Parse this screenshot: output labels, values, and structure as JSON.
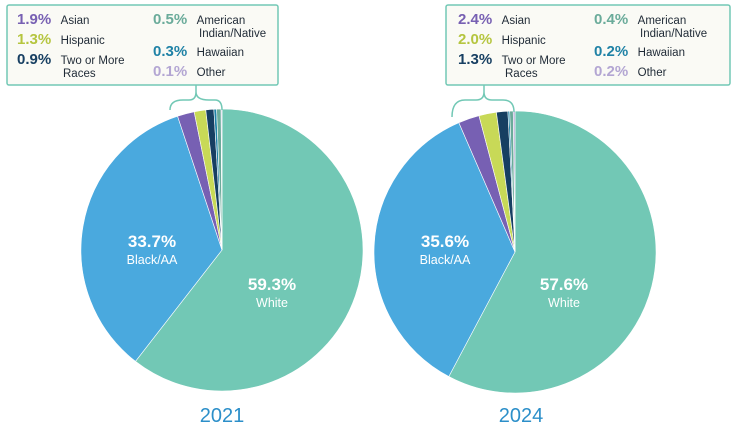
{
  "chart_data": [
    {
      "type": "pie",
      "title": "2021",
      "slices": [
        {
          "label": "White",
          "value": 59.3,
          "display": "59.3%",
          "color": "#72c8b5"
        },
        {
          "label": "Black/AA",
          "value": 33.7,
          "display": "33.7%",
          "color": "#4aa9de"
        },
        {
          "label": "Asian",
          "value": 1.9,
          "display": "1.9%",
          "color": "#7760b3"
        },
        {
          "label": "Hispanic",
          "value": 1.3,
          "display": "1.3%",
          "color": "#c8d957"
        },
        {
          "label": "Two or More Races",
          "value": 0.9,
          "display": "0.9%",
          "color": "#173f62"
        },
        {
          "label": "Hawaiian",
          "value": 0.3,
          "display": "0.3%",
          "color": "#1f82a6"
        },
        {
          "label": "American Indian/Native",
          "value": 0.5,
          "display": "0.5%",
          "color": "#6aab9a"
        },
        {
          "label": "Other",
          "value": 0.1,
          "display": "0.1%",
          "color": "#b3a6d3"
        }
      ]
    },
    {
      "type": "pie",
      "title": "2024",
      "slices": [
        {
          "label": "White",
          "value": 57.6,
          "display": "57.6%",
          "color": "#72c8b5"
        },
        {
          "label": "Black/AA",
          "value": 35.6,
          "display": "35.6%",
          "color": "#4aa9de"
        },
        {
          "label": "Asian",
          "value": 2.4,
          "display": "2.4%",
          "color": "#7760b3"
        },
        {
          "label": "Hispanic",
          "value": 2.0,
          "display": "2.0%",
          "color": "#c8d957"
        },
        {
          "label": "Two or More Races",
          "value": 1.3,
          "display": "1.3%",
          "color": "#173f62"
        },
        {
          "label": "Hawaiian",
          "value": 0.2,
          "display": "0.2%",
          "color": "#1f82a6"
        },
        {
          "label": "American Indian/Native",
          "value": 0.4,
          "display": "0.4%",
          "color": "#6aab9a"
        },
        {
          "label": "Other",
          "value": 0.2,
          "display": "0.2%",
          "color": "#b3a6d3"
        }
      ]
    }
  ],
  "inside_labels": {
    "white": "White",
    "black": "Black/AA"
  },
  "legend_labels": {
    "asian": "Asian",
    "hispanic": "Hispanic",
    "two_more_line1": "Two or More",
    "two_more_line2": "Races",
    "american_line1": "American",
    "american_line2": "Indian/Native",
    "hawaiian": "Hawaiian",
    "other": "Other"
  },
  "colors": {
    "legend_border": "#72c8b5",
    "legend_bg": "#fafaf5",
    "year": "#2c8fc9"
  }
}
